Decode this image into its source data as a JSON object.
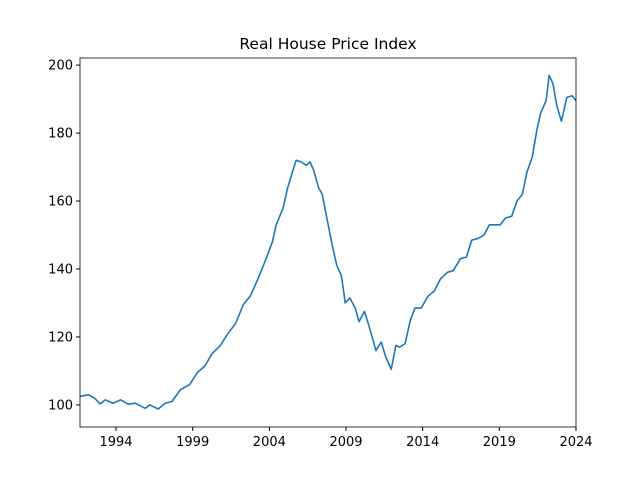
{
  "chart_data": {
    "type": "line",
    "title": "Real House Price Index",
    "x": [
      1991.65,
      1992.2,
      1992.6,
      1992.96,
      1993.3,
      1993.8,
      1994.3,
      1994.8,
      1995.25,
      1995.9,
      1996.2,
      1996.75,
      1997.2,
      1997.65,
      1998.2,
      1998.8,
      1999.3,
      1999.8,
      2000.25,
      2000.8,
      2001.3,
      2001.8,
      2002.3,
      2002.75,
      2003.2,
      2003.7,
      2004.2,
      2004.45,
      2004.9,
      2005.2,
      2005.5,
      2005.75,
      2006.1,
      2006.4,
      2006.65,
      2006.9,
      2007.2,
      2007.45,
      2007.75,
      2008.1,
      2008.4,
      2008.7,
      2008.95,
      2009.25,
      2009.6,
      2009.85,
      2010.2,
      2010.45,
      2010.7,
      2010.95,
      2011.3,
      2011.6,
      2011.95,
      2012.25,
      2012.5,
      2012.85,
      2013.2,
      2013.5,
      2013.9,
      2014.35,
      2014.75,
      2015.15,
      2015.6,
      2016.0,
      2016.45,
      2016.85,
      2017.2,
      2017.6,
      2018.0,
      2018.35,
      2018.7,
      2019.05,
      2019.4,
      2019.8,
      2020.15,
      2020.5,
      2020.8,
      2021.15,
      2021.45,
      2021.7,
      2022.05,
      2022.25,
      2022.5,
      2022.75,
      2023.05,
      2023.4,
      2023.75,
      2024.0
    ],
    "series": [
      {
        "name": "Real House Price Index",
        "color": "#1f77b4",
        "values": [
          102.5,
          103,
          102,
          100.3,
          101.5,
          100.5,
          101.5,
          100.2,
          100.5,
          99,
          100,
          98.8,
          100.5,
          101,
          104.5,
          106,
          109.5,
          111.5,
          115,
          117.5,
          121,
          124,
          129.5,
          132,
          136.5,
          142,
          148,
          153,
          158,
          164,
          168.5,
          172,
          171.5,
          170.5,
          171.5,
          169,
          164,
          162,
          155,
          147,
          141,
          138,
          130,
          131.5,
          128.5,
          124.5,
          127.5,
          124,
          120,
          116,
          118.5,
          114,
          110.5,
          117.5,
          117,
          118,
          125,
          128.5,
          128.5,
          132,
          133.5,
          137,
          139,
          139.5,
          143,
          143.5,
          148.5,
          149,
          150,
          153,
          153,
          153,
          155,
          155.5,
          160,
          162,
          168.5,
          173,
          181,
          186,
          189.5,
          197,
          194.5,
          188,
          183.5,
          190.5,
          191,
          189.5
        ]
      }
    ],
    "xlim": [
      1991.65,
      2024
    ],
    "xticks": [
      1994,
      1999,
      2004,
      2009,
      2014,
      2019,
      2024
    ],
    "ylim": [
      93.5,
      202.1
    ],
    "yticks": [
      100,
      120,
      140,
      160,
      180,
      200
    ]
  }
}
